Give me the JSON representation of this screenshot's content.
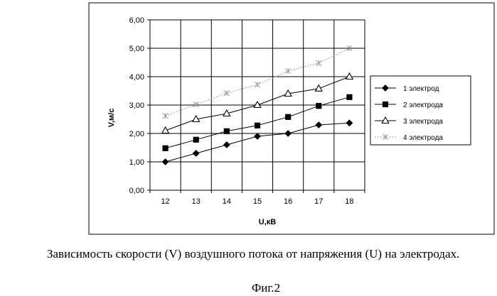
{
  "chart_data": {
    "type": "line",
    "x": [
      12,
      13,
      14,
      15,
      16,
      17,
      18
    ],
    "xlabel": "U,кВ",
    "ylabel": "V,м/с",
    "ylim": [
      0,
      6
    ],
    "yticks": [
      "0,00",
      "1,00",
      "2,00",
      "3,00",
      "4,00",
      "5,00",
      "6,00"
    ],
    "xticks": [
      "12",
      "13",
      "14",
      "15",
      "16",
      "17",
      "18"
    ],
    "grid": true,
    "legend_position": "right",
    "series": [
      {
        "name": "1 электрод",
        "marker": "diamond",
        "color": "#000000",
        "values": [
          1.0,
          1.3,
          1.6,
          1.9,
          2.0,
          2.3,
          2.37
        ]
      },
      {
        "name": "2 электрода",
        "marker": "square",
        "color": "#000000",
        "values": [
          1.48,
          1.78,
          2.08,
          2.28,
          2.58,
          2.97,
          3.28
        ]
      },
      {
        "name": "3 электрода",
        "marker": "triangle",
        "color": "#000000",
        "values": [
          2.1,
          2.5,
          2.7,
          3.0,
          3.4,
          3.58,
          4.0
        ]
      },
      {
        "name": "4 электрода",
        "marker": "star",
        "color": "#9a9a9a",
        "values": [
          2.62,
          3.02,
          3.42,
          3.72,
          4.2,
          4.48,
          5.0
        ]
      }
    ]
  },
  "caption": "Зависимость скорости (V) воздушного потока от напряжения (U) на электродах.",
  "figure_label": "Фиг.2"
}
